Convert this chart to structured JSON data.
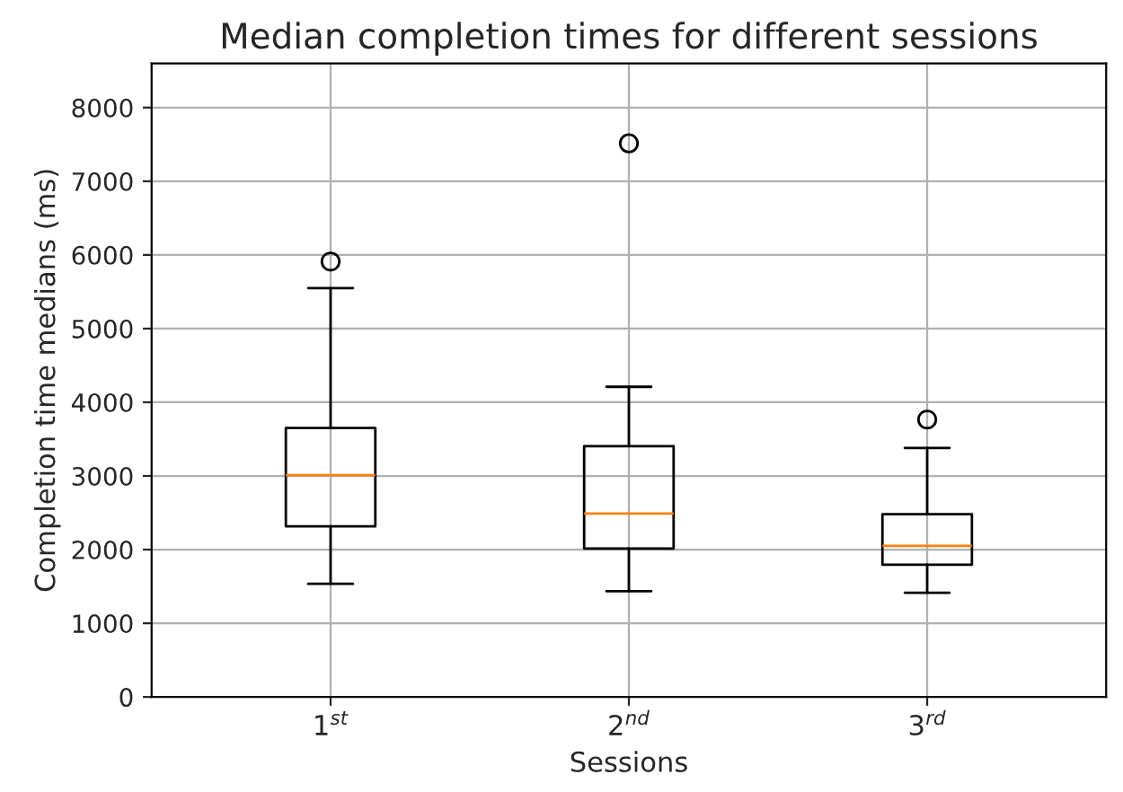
{
  "chart_data": {
    "type": "box",
    "title": "Median completion times for different sessions",
    "xlabel": "Sessions",
    "ylabel": "Completion time medians (ms)",
    "categories": [
      "1$^{st}$",
      "2$^{nd}$",
      "3$^{rd}$"
    ],
    "boxes": [
      {
        "low": 1535,
        "q1": 2315,
        "median": 3010,
        "q3": 3650,
        "high": 5550,
        "outliers": [
          5910
        ]
      },
      {
        "low": 1435,
        "q1": 2015,
        "median": 2490,
        "q3": 3405,
        "high": 4210,
        "outliers": [
          7515
        ]
      },
      {
        "low": 1415,
        "q1": 1795,
        "median": 2050,
        "q3": 2480,
        "high": 3380,
        "outliers": [
          3765
        ]
      }
    ],
    "color": "#000000",
    "ylim": [
      0,
      8600
    ],
    "yticks": [
      0,
      1000,
      2000,
      3000,
      4000,
      5000,
      6000,
      7000,
      8000
    ],
    "grid": true
  }
}
